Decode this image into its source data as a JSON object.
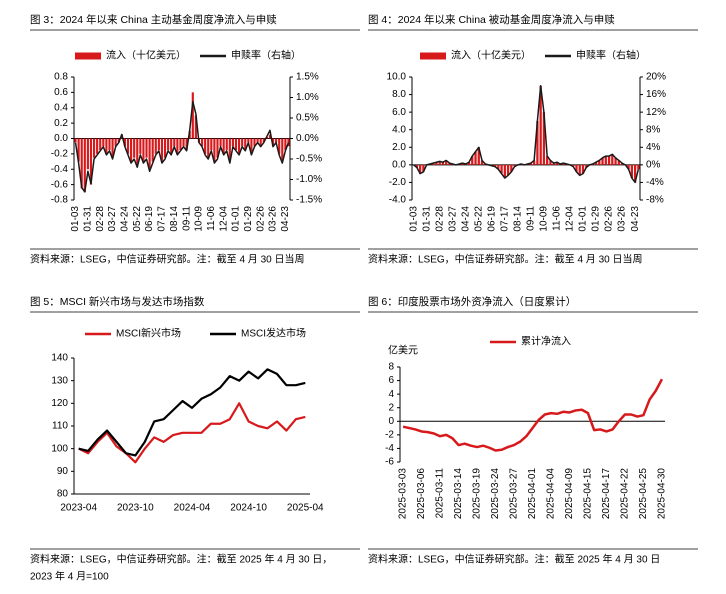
{
  "chart_data": [
    {
      "type": "combo",
      "title": "图 3：2024 年以来 China 主动基金周度净流入与申赎",
      "source": [
        "资料来源：LSEG，中信证券研究部。注：截至 4 月 30 日当周"
      ],
      "categories": [
        "01-03",
        null,
        null,
        null,
        "01-31",
        null,
        null,
        null,
        "02-28",
        null,
        null,
        null,
        "03-27",
        null,
        null,
        null,
        "04-24",
        null,
        null,
        null,
        "05-22",
        null,
        null,
        null,
        "06-19",
        null,
        null,
        null,
        "07-17",
        null,
        null,
        null,
        "08-14",
        null,
        null,
        null,
        "09-11",
        null,
        null,
        null,
        "10-09",
        null,
        null,
        null,
        "11-06",
        null,
        null,
        null,
        "12-04",
        null,
        null,
        null,
        "01-01",
        null,
        null,
        null,
        "01-29",
        null,
        null,
        null,
        "02-26",
        null,
        null,
        null,
        "03-26",
        null,
        null,
        null,
        "04-23",
        null
      ],
      "series": [
        {
          "name": "流入（十亿美元）",
          "kind": "bar",
          "color": "#d7191c",
          "values": [
            -0.05,
            -0.3,
            -0.65,
            -0.7,
            -0.4,
            -0.6,
            -0.25,
            -0.2,
            -0.15,
            -0.1,
            -0.2,
            -0.15,
            -0.25,
            -0.1,
            -0.05,
            0.05,
            -0.1,
            -0.2,
            -0.3,
            -0.25,
            -0.35,
            -0.2,
            -0.3,
            -0.25,
            -0.4,
            -0.3,
            -0.2,
            -0.15,
            -0.3,
            -0.25,
            -0.15,
            -0.2,
            -0.1,
            -0.2,
            -0.15,
            -0.1,
            -0.15,
            0.1,
            0.6,
            0.3,
            -0.05,
            -0.1,
            -0.2,
            -0.25,
            -0.15,
            -0.3,
            -0.25,
            -0.1,
            -0.2,
            -0.15,
            -0.3,
            -0.1,
            -0.15,
            -0.2,
            -0.1,
            -0.15,
            -0.05,
            -0.2,
            -0.1,
            -0.05,
            -0.1,
            -0.05,
            0.02,
            0.05,
            -0.1,
            -0.05,
            -0.2,
            -0.3,
            -0.15,
            -0.1
          ]
        },
        {
          "name": "申赎率（右轴）",
          "kind": "line",
          "axis": "y2",
          "color": "#1a1a1a",
          "values": [
            -0.1,
            -0.6,
            -1.2,
            -1.3,
            -0.8,
            -1.1,
            -0.5,
            -0.4,
            -0.3,
            -0.2,
            -0.4,
            -0.3,
            -0.5,
            -0.2,
            -0.1,
            0.1,
            -0.2,
            -0.4,
            -0.6,
            -0.5,
            -0.7,
            -0.4,
            -0.6,
            -0.5,
            -0.8,
            -0.6,
            -0.4,
            -0.3,
            -0.6,
            -0.5,
            -0.3,
            -0.4,
            -0.2,
            -0.4,
            -0.3,
            -0.2,
            -0.3,
            0.2,
            0.9,
            0.6,
            -0.1,
            -0.2,
            -0.4,
            -0.5,
            -0.3,
            -0.6,
            -0.5,
            -0.2,
            -0.4,
            -0.3,
            -0.6,
            -0.2,
            -0.3,
            -0.4,
            -0.2,
            -0.3,
            -0.1,
            -0.4,
            -0.2,
            -0.1,
            -0.2,
            -0.1,
            0.05,
            0.2,
            -0.2,
            -0.1,
            -0.4,
            -0.6,
            -0.3,
            -0.1
          ]
        }
      ],
      "ylim": [
        -0.8,
        0.8
      ],
      "yticks": [
        -0.8,
        -0.6,
        -0.4,
        -0.2,
        {
          "value": 0,
          "label": "0.0"
        },
        0.2,
        0.4,
        0.6,
        0.8
      ],
      "y2lim": [
        -1.5,
        1.5
      ],
      "y2ticks": [
        {
          "value": -1.5,
          "label": "-1.5%"
        },
        {
          "value": -1,
          "label": "-1.0%"
        },
        {
          "value": -0.5,
          "label": "-0.5%"
        },
        {
          "value": 0,
          "label": "0.0%"
        },
        {
          "value": 0.5,
          "label": "0.5%"
        },
        {
          "value": 1,
          "label": "1.0%"
        },
        {
          "value": 1.5,
          "label": "1.5%"
        }
      ]
    },
    {
      "type": "combo",
      "title": "图 4：2024 年以来 China 被动基金周度净流入与申赎",
      "source": [
        "资料来源：LSEG，中信证券研究部。注：截至 4 月 30 日当周"
      ],
      "categories": [
        "01-03",
        null,
        null,
        null,
        "01-31",
        null,
        null,
        null,
        "02-28",
        null,
        null,
        null,
        "03-27",
        null,
        null,
        null,
        "04-24",
        null,
        null,
        null,
        "05-22",
        null,
        null,
        null,
        "06-19",
        null,
        null,
        null,
        "07-17",
        null,
        null,
        null,
        "08-14",
        null,
        null,
        null,
        "09-11",
        null,
        null,
        null,
        "10-09",
        null,
        null,
        null,
        "11-06",
        null,
        null,
        null,
        "12-04",
        null,
        null,
        null,
        "01-01",
        null,
        null,
        null,
        "01-29",
        null,
        null,
        null,
        "02-26",
        null,
        null,
        null,
        "03-26",
        null,
        null,
        null,
        "04-23",
        null
      ],
      "series": [
        {
          "name": "流入（十亿美元）",
          "kind": "bar",
          "color": "#d7191c",
          "values": [
            0,
            -0.3,
            -1,
            -0.8,
            0,
            0.1,
            0.2,
            0.3,
            0.4,
            0.3,
            0.5,
            0.2,
            0.1,
            0,
            0.1,
            0.2,
            0.1,
            0.3,
            1,
            1.5,
            2,
            0.5,
            0.1,
            0,
            -0.1,
            -0.2,
            -0.5,
            -1,
            -1.5,
            -1.2,
            -0.8,
            -0.2,
            0,
            0.1,
            0,
            0.1,
            0.2,
            0.5,
            5,
            9,
            6,
            1,
            0.5,
            0.2,
            0.3,
            0.1,
            0.2,
            0.1,
            0,
            -0.2,
            -0.8,
            -1.2,
            -1,
            -0.3,
            0,
            0.1,
            0.3,
            0.5,
            0.8,
            1,
            1,
            1.2,
            0.8,
            0.5,
            0.2,
            0,
            -0.5,
            -1.5,
            -2,
            -0.5
          ]
        },
        {
          "name": "申赎率（右轴）",
          "kind": "line",
          "axis": "y2",
          "color": "#1a1a1a",
          "values": [
            0,
            -0.6,
            -2,
            -1.6,
            0,
            0.2,
            0.4,
            0.6,
            0.8,
            0.6,
            1,
            0.4,
            0.2,
            0,
            0.2,
            0.4,
            0.2,
            0.6,
            2,
            3,
            4,
            1,
            0.2,
            0,
            -0.2,
            -0.4,
            -1,
            -2,
            -3,
            -2.4,
            -1.6,
            -0.4,
            0,
            0.2,
            0,
            0.2,
            0.4,
            1,
            10,
            18,
            12,
            2,
            1,
            0.4,
            0.6,
            0.2,
            0.4,
            0.2,
            0,
            -0.4,
            -1.6,
            -2.4,
            -2,
            -0.6,
            0,
            0.2,
            0.6,
            1,
            1.6,
            2,
            2,
            2.4,
            1.6,
            1,
            0.4,
            0,
            -1,
            -3,
            -4,
            -1
          ]
        }
      ],
      "ylim": [
        -4,
        10
      ],
      "yticks": [
        {
          "value": -4,
          "label": "-4.0"
        },
        {
          "value": -2,
          "label": "-2.0"
        },
        {
          "value": 0,
          "label": "0.0"
        },
        {
          "value": 2,
          "label": "2.0"
        },
        {
          "value": 4,
          "label": "4.0"
        },
        {
          "value": 6,
          "label": "6.0"
        },
        {
          "value": 8,
          "label": "8.0"
        },
        {
          "value": 10,
          "label": "10.0"
        }
      ],
      "y2lim": [
        -8,
        20
      ],
      "y2ticks": [
        {
          "value": -8,
          "label": "-8%"
        },
        {
          "value": -4,
          "label": "-4%"
        },
        {
          "value": 0,
          "label": "0%"
        },
        {
          "value": 4,
          "label": "4%"
        },
        {
          "value": 8,
          "label": "8%"
        },
        {
          "value": 12,
          "label": "12%"
        },
        {
          "value": 16,
          "label": "16%"
        },
        {
          "value": 20,
          "label": "20%"
        }
      ]
    },
    {
      "type": "line",
      "title": "图 5：MSCI 新兴市场与发达市场指数",
      "source": [
        "资料来源：LSEG，中信证券研究部。注：截至 2025 年 4 月 30 日，",
        "2023 年 4 月=100"
      ],
      "categories": [
        "2023-04",
        null,
        null,
        null,
        null,
        null,
        "2023-10",
        null,
        null,
        null,
        null,
        null,
        "2024-04",
        null,
        null,
        null,
        null,
        null,
        "2024-10",
        null,
        null,
        null,
        null,
        null,
        "2025-04"
      ],
      "series": [
        {
          "name": "MSCI新兴市场",
          "kind": "line",
          "color": "#d7191c",
          "values": [
            100,
            98,
            103,
            107,
            101,
            98,
            94,
            100,
            105,
            103,
            106,
            107,
            107,
            107,
            111,
            111,
            113,
            120,
            112,
            110,
            109,
            112,
            108,
            113,
            114
          ]
        },
        {
          "name": "MSCI发达市场",
          "kind": "line",
          "color": "#000000",
          "values": [
            100,
            99,
            104,
            108,
            103,
            98,
            97,
            103,
            112,
            113,
            117,
            121,
            118,
            122,
            124,
            127,
            132,
            130,
            134,
            131,
            135,
            133,
            128,
            128,
            129
          ]
        }
      ],
      "ylim": [
        80,
        140
      ],
      "yticks": [
        80,
        90,
        100,
        110,
        120,
        130,
        140
      ]
    },
    {
      "type": "line",
      "title": "图 6：印度股票市场外资净流入（日度累计）",
      "source": [
        "资料来源：LSEG，中信证券研究部。注：截至 2025 年 4 月 30 日"
      ],
      "y_label": "亿美元",
      "categories": [
        "2025-03-03",
        null,
        null,
        "2025-03-06",
        null,
        null,
        "2025-03-11",
        null,
        null,
        "2025-03-14",
        null,
        null,
        "2025-03-19",
        null,
        null,
        "2025-03-24",
        null,
        null,
        "2025-03-27",
        null,
        null,
        "2025-04-01",
        null,
        null,
        "2025-04-04",
        null,
        null,
        "2025-04-09",
        null,
        null,
        "2025-04-15",
        null,
        null,
        "2025-04-17",
        null,
        null,
        "2025-04-22",
        null,
        null,
        "2025-04-25",
        null,
        null,
        "2025-04-30"
      ],
      "series": [
        {
          "name": "累计净流入",
          "kind": "line",
          "color": "#d7191c",
          "values": [
            -0.8,
            -1,
            -1.2,
            -1.5,
            -1.6,
            -1.8,
            -2.2,
            -2,
            -2.5,
            -3.5,
            -3.3,
            -3.6,
            -3.8,
            -3.6,
            -3.9,
            -4.3,
            -4.2,
            -3.8,
            -3.5,
            -3,
            -2.2,
            -1,
            0.2,
            1,
            1.2,
            1.1,
            1.4,
            1.3,
            1.6,
            1.7,
            1.2,
            -1.3,
            -1.2,
            -1.5,
            -1.2,
            0,
            1,
            1,
            0.7,
            0.9,
            3.2,
            4.5,
            6.2
          ]
        }
      ],
      "ylim": [
        -6,
        8
      ],
      "yticks": [
        -6,
        -4,
        -2,
        0,
        2,
        4,
        6,
        8
      ]
    }
  ]
}
